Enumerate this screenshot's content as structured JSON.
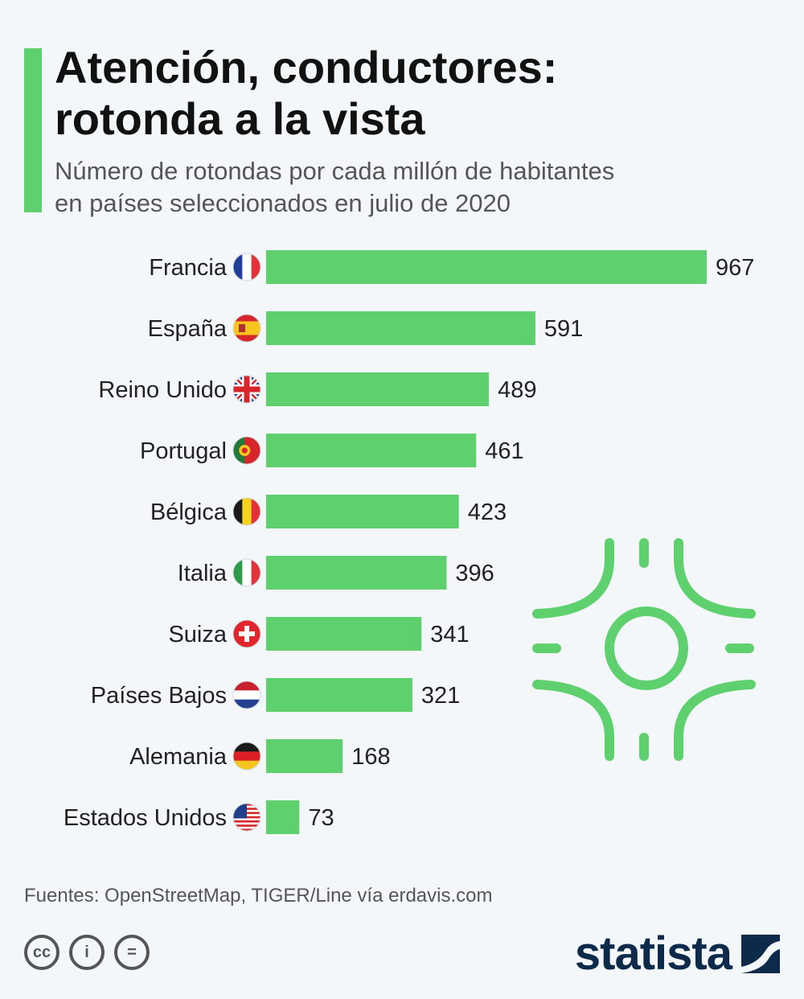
{
  "title_line1": "Atención, conductores:",
  "title_line2": "rotonda a la vista",
  "subtitle_line1": "Número de rotondas por cada millón de habitantes",
  "subtitle_line2": "en países seleccionados en julio de 2020",
  "source": "Fuentes: OpenStreetMap, TIGER/Line vía erdavis.com",
  "brand": "statista",
  "license_icons": [
    "cc-icon",
    "by-icon",
    "nd-icon"
  ],
  "license_labels": [
    "cc",
    "i",
    "="
  ],
  "colors": {
    "accent": "#5ed16e",
    "brand": "#0d2a4a"
  },
  "chart_data": {
    "type": "bar",
    "orientation": "horizontal",
    "title": "Atención, conductores: rotonda a la vista",
    "subtitle": "Número de rotondas por cada millón de habitantes en países seleccionados en julio de 2020",
    "categories": [
      "Francia",
      "España",
      "Reino Unido",
      "Portugal",
      "Bélgica",
      "Italia",
      "Suiza",
      "Países Bajos",
      "Alemania",
      "Estados Unidos"
    ],
    "flags": [
      "fr",
      "es",
      "gb",
      "pt",
      "be",
      "it",
      "ch",
      "nl",
      "de",
      "us"
    ],
    "values": [
      967,
      591,
      489,
      461,
      423,
      396,
      341,
      321,
      168,
      73
    ],
    "xlim": [
      0,
      967
    ],
    "grid": false,
    "legend": "none",
    "bar_color": "#5ed16e"
  }
}
